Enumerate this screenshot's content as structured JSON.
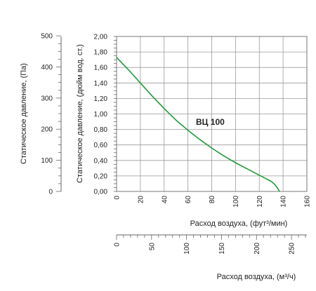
{
  "chart_data": {
    "type": "line",
    "title": "",
    "series": [
      {
        "name": "ВЦ 100",
        "color": "#1f9a3a",
        "x": [
          0,
          10,
          20,
          30,
          40,
          50,
          60,
          70,
          80,
          90,
          100,
          110,
          120,
          125,
          130,
          133,
          135,
          137
        ],
        "y": [
          1.73,
          1.57,
          1.4,
          1.23,
          1.07,
          0.92,
          0.79,
          0.67,
          0.56,
          0.46,
          0.37,
          0.29,
          0.21,
          0.17,
          0.13,
          0.09,
          0.05,
          0.0
        ]
      }
    ],
    "x_axis": {
      "label": "Расход воздуха, (фут³/мин)",
      "range": [
        0,
        160
      ],
      "ticks": [
        "0",
        "20",
        "40",
        "60",
        "80",
        "100",
        "120",
        "140",
        "160"
      ]
    },
    "x_axis_secondary": {
      "label": "Расход воздуха, (м³/ч)",
      "range": [
        0,
        272
      ],
      "ticks": [
        "0",
        "50",
        "100",
        "150",
        "200",
        "250"
      ]
    },
    "y_axis": {
      "label": "Статическое давление, (дюйм вод. ст.)",
      "range": [
        0,
        2.0
      ],
      "ticks": [
        "0,00",
        "0,20",
        "0,40",
        "0,60",
        "0,80",
        "1,00",
        "1,20",
        "1,40",
        "1,60",
        "1,80",
        "2,00"
      ]
    },
    "y_axis_secondary": {
      "label": "Статическое давление, (Па)",
      "range": [
        0,
        498
      ],
      "ticks": [
        "0",
        "100",
        "200",
        "300",
        "400",
        "500"
      ]
    },
    "grid": true,
    "legend": "none"
  }
}
